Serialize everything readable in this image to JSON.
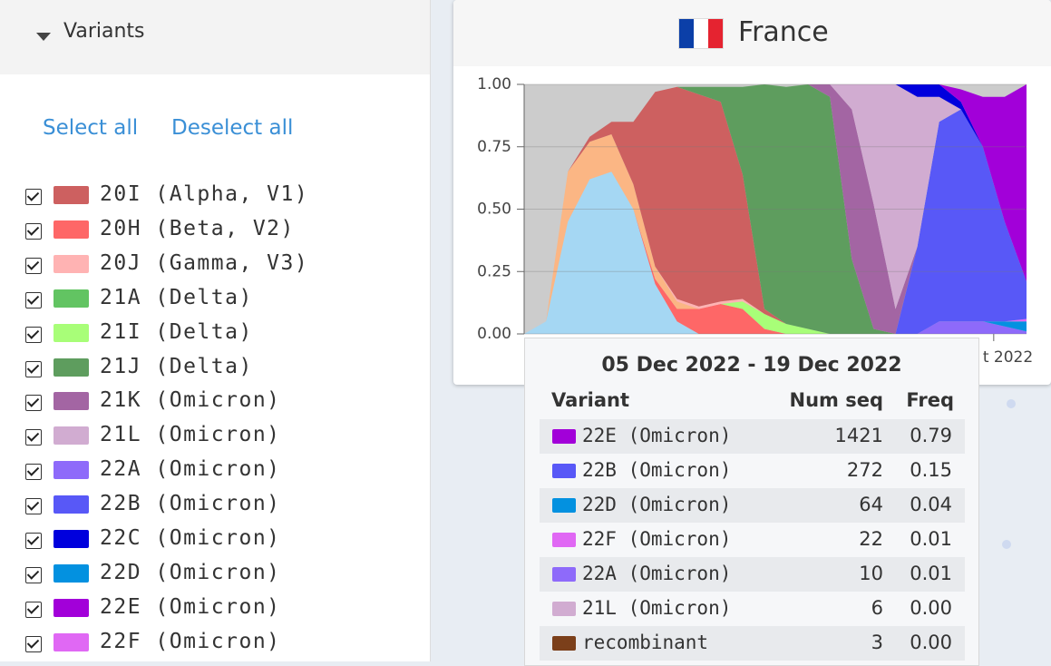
{
  "sidebar": {
    "title": "Variants",
    "select_all": "Select all",
    "deselect_all": "Deselect all"
  },
  "panel": {
    "title": "France"
  },
  "chart_data": {
    "type": "area",
    "stacked": true,
    "categories": [
      null,
      null,
      null,
      null,
      null,
      null,
      null,
      null,
      null,
      null,
      null,
      null,
      null,
      null,
      null,
      null,
      null,
      null,
      null,
      null,
      null,
      "t 2022",
      null,
      null
    ],
    "series": [
      {
        "name": "20I (Alpha, V1)",
        "color": "#cd6060",
        "values": [
          0,
          0,
          0,
          0.02,
          0.05,
          0.25,
          0.7,
          0.85,
          0.85,
          0.8,
          0.5,
          0.02,
          0,
          0,
          0,
          0,
          0,
          0,
          0,
          0,
          0,
          0,
          0,
          0
        ]
      },
      {
        "name": "20H (Beta, V2)",
        "color": "#fe6767",
        "values": [
          0,
          0,
          0,
          0,
          0,
          0,
          0.02,
          0.05,
          0.1,
          0.12,
          0.1,
          0.02,
          0,
          0,
          0,
          0,
          0,
          0,
          0,
          0,
          0,
          0,
          0,
          0
        ]
      },
      {
        "name": "20J (Gamma, V3)",
        "color": "#ffb3b3",
        "values": [
          0,
          0,
          0,
          0,
          0,
          0,
          0,
          0.01,
          0.01,
          0.01,
          0.01,
          0,
          0,
          0,
          0,
          0,
          0,
          0,
          0,
          0,
          0,
          0,
          0,
          0
        ]
      },
      {
        "name": "21A (Delta)",
        "color": "#62c462",
        "values": [
          0,
          0,
          0,
          0,
          0,
          0,
          0,
          0,
          0,
          0,
          0,
          0,
          0,
          0,
          0,
          0,
          0,
          0,
          0,
          0,
          0,
          0,
          0,
          0
        ]
      },
      {
        "name": "21I (Delta)",
        "color": "#a8fe78",
        "values": [
          0,
          0,
          0,
          0,
          0,
          0,
          0,
          0,
          0,
          0,
          0.03,
          0.06,
          0.04,
          0.02,
          0,
          0,
          0,
          0,
          0,
          0,
          0,
          0,
          0,
          0
        ]
      },
      {
        "name": "21J (Delta)",
        "color": "#5e9d5e",
        "values": [
          0,
          0,
          0,
          0,
          0,
          0,
          0,
          0,
          0.03,
          0.06,
          0.35,
          0.9,
          0.95,
          0.98,
          0.95,
          0.3,
          0.02,
          0,
          0,
          0,
          0,
          0,
          0,
          0
        ]
      },
      {
        "name": "21K (Omicron)",
        "color": "#a365a3",
        "values": [
          0,
          0,
          0,
          0,
          0,
          0,
          0,
          0,
          0,
          0,
          0,
          0,
          0,
          0,
          0.05,
          0.6,
          0.5,
          0.1,
          0,
          0,
          0,
          0,
          0,
          0
        ]
      },
      {
        "name": "21L (Omicron)",
        "color": "#d1acd1",
        "values": [
          0,
          0,
          0,
          0,
          0,
          0,
          0,
          0,
          0,
          0,
          0,
          0,
          0,
          0,
          0,
          0.1,
          0.48,
          0.9,
          0.6,
          0.1,
          0,
          0,
          0,
          0
        ]
      },
      {
        "name": "22A (Omicron)",
        "color": "#8e6afa",
        "values": [
          0,
          0,
          0,
          0,
          0,
          0,
          0,
          0,
          0,
          0,
          0,
          0,
          0,
          0,
          0,
          0,
          0,
          0,
          0,
          0.05,
          0.05,
          0.05,
          0.03,
          0.01
        ]
      },
      {
        "name": "22B (Omicron)",
        "color": "#5858f7",
        "values": [
          0,
          0,
          0,
          0,
          0,
          0,
          0,
          0,
          0,
          0,
          0,
          0,
          0,
          0,
          0,
          0,
          0,
          0,
          0.35,
          0.8,
          0.85,
          0.7,
          0.4,
          0.15
        ]
      },
      {
        "name": "22C (Omicron)",
        "color": "#0000dd",
        "values": [
          0,
          0,
          0,
          0,
          0,
          0,
          0,
          0,
          0,
          0,
          0,
          0,
          0,
          0,
          0,
          0,
          0,
          0,
          0.05,
          0.05,
          0.03,
          0,
          0,
          0
        ]
      },
      {
        "name": "22D (Omicron)",
        "color": "#0391e0",
        "values": [
          0,
          0,
          0,
          0,
          0,
          0,
          0,
          0,
          0,
          0,
          0,
          0,
          0,
          0,
          0,
          0,
          0,
          0,
          0,
          0,
          0,
          0,
          0.02,
          0.04
        ]
      },
      {
        "name": "22E (Omicron)",
        "color": "#a200d9",
        "values": [
          0,
          0,
          0,
          0,
          0,
          0,
          0,
          0,
          0,
          0,
          0,
          0,
          0,
          0,
          0,
          0,
          0,
          0,
          0,
          0,
          0.05,
          0.2,
          0.5,
          0.79
        ]
      },
      {
        "name": "22F (Omicron)",
        "color": "#e068f4",
        "values": [
          0,
          0,
          0,
          0,
          0,
          0,
          0,
          0,
          0,
          0,
          0,
          0,
          0,
          0,
          0,
          0,
          0,
          0,
          0,
          0,
          0,
          0,
          0,
          0.01
        ]
      },
      {
        "color": "#a5d7f3",
        "values": [
          0,
          0.05,
          0.45,
          0.62,
          0.65,
          0.5,
          0.2,
          0.05,
          0,
          0,
          0,
          0,
          0,
          0,
          0,
          0,
          0,
          0,
          0,
          0,
          0,
          0,
          0,
          0
        ]
      },
      {
        "color": "#fbb684",
        "values": [
          0,
          0,
          0.2,
          0.15,
          0.15,
          0.1,
          0.05,
          0.03,
          0,
          0,
          0,
          0,
          0,
          0,
          0,
          0,
          0,
          0,
          0,
          0,
          0,
          0,
          0,
          0
        ]
      }
    ],
    "ylim": [
      0,
      1
    ],
    "yticks": [
      {
        "value": 0,
        "label": "0.00"
      },
      {
        "value": 0.25,
        "label": "0.25"
      },
      {
        "value": 0.5,
        "label": "0.50"
      },
      {
        "value": 0.75,
        "label": "0.75"
      },
      {
        "value": 1,
        "label": "1.00"
      }
    ],
    "grid": true,
    "background": "#cccccc"
  },
  "tooltip": {
    "title": "05 Dec 2022 - 19 Dec 2022",
    "headers": [
      "Variant",
      "Num seq",
      "Freq"
    ],
    "rows": [
      {
        "color": "#a200d9",
        "name": "22E (Omicron)",
        "num_seq": 1421,
        "freq": "0.79"
      },
      {
        "color": "#5858f7",
        "name": "22B (Omicron)",
        "num_seq": 272,
        "freq": "0.15"
      },
      {
        "color": "#0391e0",
        "name": "22D (Omicron)",
        "num_seq": 64,
        "freq": "0.04"
      },
      {
        "color": "#e068f4",
        "name": "22F (Omicron)",
        "num_seq": 22,
        "freq": "0.01"
      },
      {
        "color": "#8e6afa",
        "name": "22A (Omicron)",
        "num_seq": 10,
        "freq": "0.01"
      },
      {
        "color": "#d1acd1",
        "name": "21L (Omicron)",
        "num_seq": 6,
        "freq": "0.00"
      },
      {
        "color": "#7b3f1a",
        "name": "recombinant",
        "num_seq": 3,
        "freq": "0.00"
      }
    ]
  }
}
